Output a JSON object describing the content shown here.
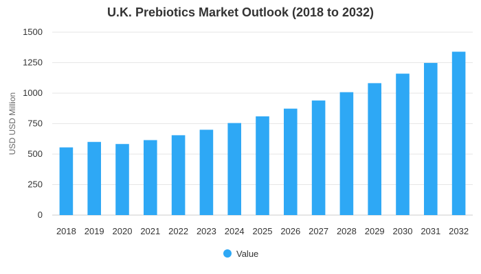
{
  "chart_data": {
    "type": "bar",
    "title": "U.K. Prebiotics Market Outlook (2018 to 2032)",
    "xlabel": "",
    "ylabel": "USD USD Million",
    "categories": [
      "2018",
      "2019",
      "2020",
      "2021",
      "2022",
      "2023",
      "2024",
      "2025",
      "2026",
      "2027",
      "2028",
      "2029",
      "2030",
      "2031",
      "2032"
    ],
    "series": [
      {
        "name": "Value",
        "color": "#2ea8f5",
        "values": [
          555,
          600,
          583,
          615,
          655,
          700,
          755,
          810,
          873,
          940,
          1008,
          1082,
          1160,
          1248,
          1340
        ]
      }
    ],
    "ylim": [
      0,
      1500
    ],
    "yticks": [
      0,
      250,
      500,
      750,
      1000,
      1250,
      1500
    ],
    "grid": true,
    "legend_position": "bottom-center"
  }
}
